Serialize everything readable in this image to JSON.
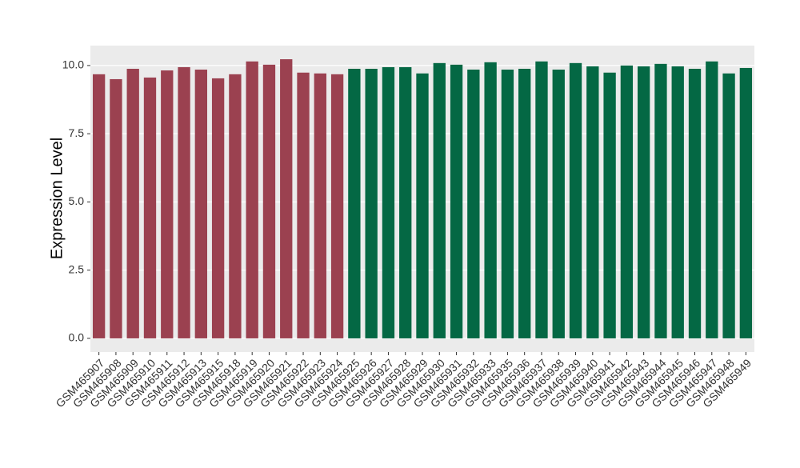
{
  "chart_data": {
    "type": "bar",
    "y_label": "Expression Level",
    "categories": [
      "GSM465907",
      "GSM465908",
      "GSM465909",
      "GSM465910",
      "GSM465911",
      "GSM465912",
      "GSM465913",
      "GSM465915",
      "GSM465918",
      "GSM465919",
      "GSM465920",
      "GSM465921",
      "GSM465922",
      "GSM465923",
      "GSM465924",
      "GSM465925",
      "GSM465926",
      "GSM465927",
      "GSM465928",
      "GSM465929",
      "GSM465930",
      "GSM465931",
      "GSM465932",
      "GSM465933",
      "GSM465935",
      "GSM465936",
      "GSM465937",
      "GSM465938",
      "GSM465939",
      "GSM465940",
      "GSM465941",
      "GSM465942",
      "GSM465943",
      "GSM465944",
      "GSM465945",
      "GSM465946",
      "GSM465947",
      "GSM465948",
      "GSM465949"
    ],
    "values": [
      9.68,
      9.5,
      9.88,
      9.56,
      9.82,
      9.94,
      9.85,
      9.53,
      9.68,
      10.15,
      10.03,
      10.23,
      9.74,
      9.71,
      9.68,
      9.88,
      9.88,
      9.94,
      9.94,
      9.71,
      10.09,
      10.03,
      9.85,
      10.12,
      9.85,
      9.88,
      10.15,
      9.85,
      10.09,
      9.97,
      9.74,
      10.0,
      9.97,
      10.06,
      9.97,
      9.88,
      10.15,
      9.71,
      9.91
    ],
    "colors": [
      "#9b4150",
      "#9b4150",
      "#9b4150",
      "#9b4150",
      "#9b4150",
      "#9b4150",
      "#9b4150",
      "#9b4150",
      "#9b4150",
      "#9b4150",
      "#9b4150",
      "#9b4150",
      "#9b4150",
      "#9b4150",
      "#9b4150",
      "#046844",
      "#046844",
      "#046844",
      "#046844",
      "#046844",
      "#046844",
      "#046844",
      "#046844",
      "#046844",
      "#046844",
      "#046844",
      "#046844",
      "#046844",
      "#046844",
      "#046844",
      "#046844",
      "#046844",
      "#046844",
      "#046844",
      "#046844",
      "#046844",
      "#046844",
      "#046844",
      "#046844"
    ],
    "ylim": [
      -0.5,
      10.73
    ],
    "yticks": [
      {
        "value": 0,
        "label": "0.0"
      },
      2.5,
      {
        "value": 5,
        "label": "5.0"
      },
      7.5,
      {
        "value": 10,
        "label": "10.0"
      }
    ],
    "grid": true
  }
}
